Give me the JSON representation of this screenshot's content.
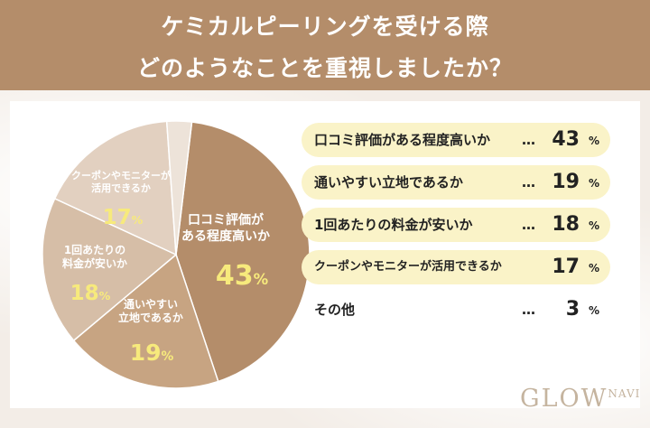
{
  "header": {
    "title_line1": "ケミカルピーリングを受ける際",
    "title_line2": "どのようなことを重視しましたか？"
  },
  "chart_data": {
    "type": "pie",
    "unit": "%",
    "slices": [
      {
        "label": "口コミ評価がある程度高いか",
        "value": 43,
        "color": "#b48d6a",
        "pie_label_lines": [
          "口コミ評価が",
          "ある程度高いか"
        ]
      },
      {
        "label": "通いやすい立地であるか",
        "value": 19,
        "color": "#c7a482",
        "pie_label_lines": [
          "通いやすい",
          "立地であるか"
        ]
      },
      {
        "label": "1回あたりの料金が安いか",
        "value": 18,
        "color": "#d6bea7",
        "pie_label_lines": [
          "1回あたりの",
          "料金が安いか"
        ]
      },
      {
        "label": "クーポンやモニターが活用できるか",
        "value": 17,
        "color": "#e2d0c0",
        "pie_label_lines": [
          "クーポンやモニターが",
          "活用できるか"
        ]
      },
      {
        "label": "その他",
        "value": 3,
        "color": "#ede3d9",
        "pie_label_lines": []
      }
    ]
  },
  "legend_rows": [
    {
      "label": "口コミ評価がある程度高いか",
      "dots": "…",
      "value": "43",
      "unit": "%"
    },
    {
      "label": "通いやすい立地であるか",
      "dots": "…",
      "value": "19",
      "unit": "%"
    },
    {
      "label": "1回あたりの料金が安いか",
      "dots": "…",
      "value": "18",
      "unit": "%"
    },
    {
      "label": "クーポンやモニターが活用できるか",
      "dots": "…",
      "value": "17",
      "unit": "%"
    },
    {
      "label": "その他",
      "dots": "…",
      "value": "3",
      "unit": "%"
    }
  ],
  "pie_labels": {
    "s0": {
      "line1": "口コミ評価が",
      "line2": "ある程度高いか",
      "value": "43",
      "unit": "%"
    },
    "s1": {
      "line1": "通いやすい",
      "line2": "立地であるか",
      "value": "19",
      "unit": "%"
    },
    "s2": {
      "line1": "1回あたりの",
      "line2": "料金が安いか",
      "value": "18",
      "unit": "%"
    },
    "s3": {
      "line1": "クーポンやモニターが",
      "line2": "活用できるか",
      "value": "17",
      "unit": "%"
    }
  },
  "logo": {
    "main": "GLOW",
    "sub_top": "NA",
    "sub_bottom": "VI"
  }
}
